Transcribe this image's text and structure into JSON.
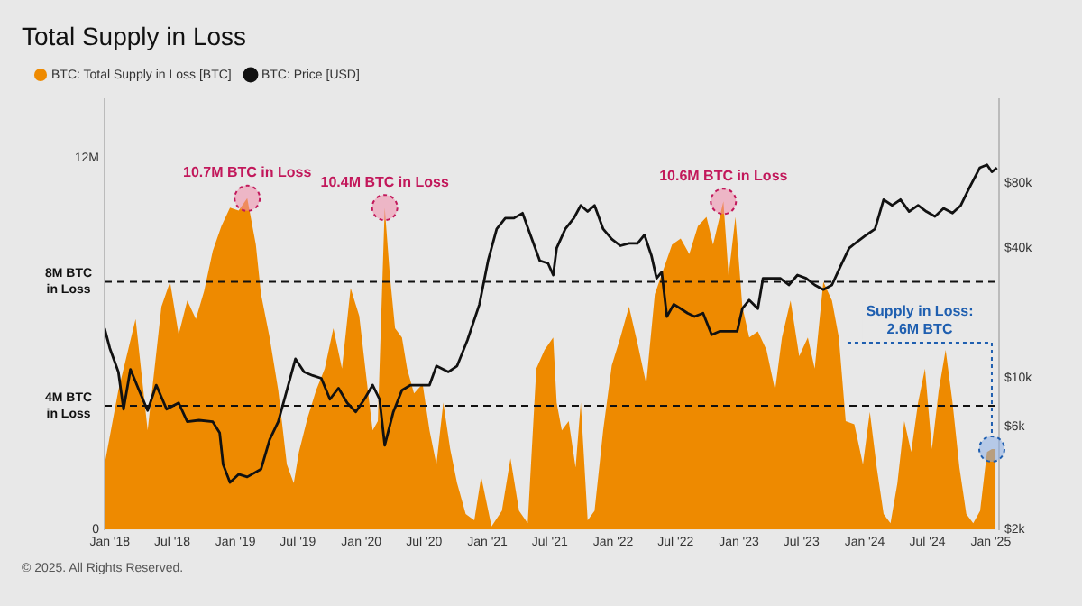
{
  "chart_data": {
    "type": "area",
    "title": "Total Supply in Loss",
    "x": [
      "2017-12-17",
      "2018-01-26",
      "2018-03-17",
      "2018-04-21",
      "2018-05-31",
      "2018-06-25",
      "2018-07-20",
      "2018-08-14",
      "2018-09-08",
      "2018-10-02",
      "2018-10-27",
      "2018-11-21",
      "2018-12-16",
      "2019-01-10",
      "2019-02-04",
      "2019-03-01",
      "2019-03-16",
      "2019-04-10",
      "2019-05-05",
      "2019-05-30",
      "2019-06-19",
      "2019-07-04",
      "2019-07-29",
      "2019-08-23",
      "2019-09-17",
      "2019-10-12",
      "2019-11-06",
      "2019-12-01",
      "2019-12-26",
      "2020-01-20",
      "2020-02-03",
      "2020-02-18",
      "2020-03-09",
      "2020-03-24",
      "2020-04-08",
      "2020-04-28",
      "2020-05-13",
      "2020-06-02",
      "2020-06-27",
      "2020-07-17",
      "2020-08-06",
      "2020-08-26",
      "2020-09-15",
      "2020-10-05",
      "2020-10-30",
      "2020-11-24",
      "2020-12-14",
      "2021-01-13",
      "2021-02-12",
      "2021-03-09",
      "2021-04-03",
      "2021-04-28",
      "2021-05-23",
      "2021-06-16",
      "2021-07-11",
      "2021-07-21",
      "2021-08-05",
      "2021-08-25",
      "2021-09-14",
      "2021-09-29",
      "2021-10-19",
      "2021-11-08",
      "2021-12-03",
      "2021-12-28",
      "2022-01-22",
      "2022-02-16",
      "2022-03-13",
      "2022-04-07",
      "2022-05-02",
      "2022-05-27",
      "2022-06-21",
      "2022-07-16",
      "2022-08-10",
      "2022-09-04",
      "2022-09-29",
      "2022-10-18",
      "2022-11-17",
      "2022-12-02",
      "2022-12-22",
      "2023-01-11",
      "2023-01-31",
      "2023-02-25",
      "2023-03-22",
      "2023-04-16",
      "2023-05-06",
      "2023-05-31",
      "2023-06-25",
      "2023-07-20",
      "2023-08-09",
      "2023-09-03",
      "2023-09-28",
      "2023-10-18",
      "2023-11-07",
      "2023-12-02",
      "2023-12-27",
      "2024-01-16",
      "2024-02-05",
      "2024-02-25",
      "2024-03-16",
      "2024-04-05",
      "2024-04-25",
      "2024-05-15",
      "2024-06-04",
      "2024-06-24",
      "2024-07-14",
      "2024-08-03",
      "2024-08-23",
      "2024-09-12",
      "2024-10-02",
      "2024-10-22",
      "2024-11-11",
      "2024-12-01",
      "2024-12-21",
      "2025-01-04",
      "2025-01-15"
    ],
    "series": [
      {
        "name": "BTC: Total Supply in Loss [BTC]",
        "type": "area",
        "color": "#ee8a00",
        "values": [
          2100000,
          4500000,
          6800000,
          3200000,
          7200000,
          8000000,
          6300000,
          7400000,
          6800000,
          7700000,
          9000000,
          9800000,
          10400000,
          10300000,
          10700000,
          9200000,
          7600000,
          6200000,
          4500000,
          2100000,
          1500000,
          2500000,
          3600000,
          4500000,
          5200000,
          6500000,
          5200000,
          7800000,
          6900000,
          4500000,
          3200000,
          3500000,
          10400000,
          8200000,
          6500000,
          6200000,
          5200000,
          4400000,
          4700000,
          3200000,
          2100000,
          4100000,
          2600000,
          1500000,
          500000,
          300000,
          1700000,
          100000,
          600000,
          2300000,
          600000,
          200000,
          5200000,
          5800000,
          6200000,
          4100000,
          3200000,
          3500000,
          2000000,
          4100000,
          300000,
          600000,
          3200000,
          5300000,
          6200000,
          7200000,
          6000000,
          4700000,
          7600000,
          8400000,
          9200000,
          9400000,
          8900000,
          9800000,
          10100000,
          9200000,
          10600000,
          8200000,
          10100000,
          7200000,
          6200000,
          6400000,
          5800000,
          4500000,
          6200000,
          7400000,
          5600000,
          6200000,
          5200000,
          8000000,
          7400000,
          6200000,
          3500000,
          3400000,
          2100000,
          3800000,
          2000000,
          500000,
          200000,
          1500000,
          3500000,
          2500000,
          4100000,
          5200000,
          2600000,
          4500000,
          5800000,
          4100000,
          2000000,
          500000,
          200000,
          600000,
          2500000,
          2600000,
          2600000
        ]
      },
      {
        "name": "BTC: Price [USD]",
        "type": "line",
        "axis": "y2",
        "color": "#111111",
        "x": [
          "2017-12-17",
          "2018-01-01",
          "2018-01-26",
          "2018-02-10",
          "2018-03-02",
          "2018-03-27",
          "2018-04-21",
          "2018-05-16",
          "2018-06-15",
          "2018-07-20",
          "2018-08-14",
          "2018-09-17",
          "2018-10-27",
          "2018-11-16",
          "2018-11-26",
          "2018-12-16",
          "2019-01-10",
          "2019-02-04",
          "2019-03-16",
          "2019-04-10",
          "2019-05-05",
          "2019-05-30",
          "2019-06-24",
          "2019-07-19",
          "2019-08-13",
          "2019-09-07",
          "2019-10-02",
          "2019-10-27",
          "2019-11-21",
          "2019-12-16",
          "2020-01-10",
          "2020-02-03",
          "2020-02-23",
          "2020-03-09",
          "2020-04-03",
          "2020-04-28",
          "2020-05-23",
          "2020-06-17",
          "2020-07-17",
          "2020-08-06",
          "2020-09-10",
          "2020-10-05",
          "2020-11-04",
          "2020-12-09",
          "2021-01-03",
          "2021-01-28",
          "2021-02-22",
          "2021-03-19",
          "2021-04-13",
          "2021-05-08",
          "2021-06-02",
          "2021-06-26",
          "2021-07-11",
          "2021-07-21",
          "2021-08-15",
          "2021-09-09",
          "2021-09-29",
          "2021-10-19",
          "2021-11-08",
          "2021-12-03",
          "2021-12-28",
          "2022-01-22",
          "2022-02-16",
          "2022-03-13",
          "2022-04-02",
          "2022-04-22",
          "2022-05-07",
          "2022-05-22",
          "2022-06-06",
          "2022-06-26",
          "2022-07-16",
          "2022-08-05",
          "2022-08-25",
          "2022-09-19",
          "2022-10-14",
          "2022-11-07",
          "2022-12-02",
          "2022-12-27",
          "2023-01-11",
          "2023-01-31",
          "2023-02-25",
          "2023-03-12",
          "2023-04-06",
          "2023-05-01",
          "2023-05-26",
          "2023-06-20",
          "2023-07-15",
          "2023-08-09",
          "2023-09-03",
          "2023-09-28",
          "2023-10-23",
          "2023-11-17",
          "2023-12-12",
          "2024-01-06",
          "2024-01-31",
          "2024-02-25",
          "2024-03-21",
          "2024-04-14",
          "2024-05-09",
          "2024-06-04",
          "2024-06-28",
          "2024-07-23",
          "2024-08-17",
          "2024-09-12",
          "2024-10-06",
          "2024-10-31",
          "2024-11-30",
          "2024-12-21",
          "2025-01-04",
          "2025-01-19"
        ],
        "values": [
          17000,
          13800,
          10700,
          7200,
          11000,
          8800,
          7100,
          9300,
          7200,
          7700,
          6300,
          6400,
          6300,
          5600,
          4000,
          3300,
          3600,
          3500,
          3800,
          5200,
          6300,
          8800,
          12300,
          10700,
          10300,
          10000,
          8000,
          9000,
          7700,
          7000,
          8000,
          9300,
          8000,
          4900,
          7000,
          8800,
          9300,
          9300,
          9300,
          11400,
          10700,
          11400,
          15000,
          22000,
          35000,
          49000,
          55000,
          55000,
          58000,
          45000,
          35000,
          34000,
          30000,
          40000,
          49000,
          55000,
          63000,
          59000,
          63000,
          49000,
          44000,
          41000,
          42000,
          42000,
          46000,
          37000,
          29000,
          31000,
          19300,
          22000,
          21000,
          20000,
          19300,
          20000,
          15900,
          16500,
          16500,
          16500,
          21000,
          23000,
          21000,
          29000,
          29000,
          29000,
          27000,
          30000,
          29000,
          27000,
          25700,
          27000,
          33000,
          40000,
          43000,
          46000,
          49000,
          67000,
          63000,
          67000,
          59000,
          63000,
          59000,
          56000,
          61000,
          58000,
          63000,
          76000,
          94000,
          97000,
          90000,
          94000
        ]
      }
    ],
    "xlim": [
      "2017-12-17",
      "2025-01-25"
    ],
    "xticks": [
      {
        "value": "2018-01-01",
        "label": "Jan '18"
      },
      {
        "value": "2018-07-01",
        "label": "Jul '18"
      },
      {
        "value": "2019-01-01",
        "label": "Jan '19"
      },
      {
        "value": "2019-07-01",
        "label": "Jul '19"
      },
      {
        "value": "2020-01-01",
        "label": "Jan '20"
      },
      {
        "value": "2020-07-01",
        "label": "Jul '20"
      },
      {
        "value": "2021-01-01",
        "label": "Jan '21"
      },
      {
        "value": "2021-07-01",
        "label": "Jul '21"
      },
      {
        "value": "2022-01-01",
        "label": "Jan '22"
      },
      {
        "value": "2022-07-01",
        "label": "Jul '22"
      },
      {
        "value": "2023-01-01",
        "label": "Jan '23"
      },
      {
        "value": "2023-07-01",
        "label": "Jul '23"
      },
      {
        "value": "2024-01-01",
        "label": "Jan '24"
      },
      {
        "value": "2024-07-01",
        "label": "Jul '24"
      },
      {
        "value": "2025-01-01",
        "label": "Jan '25"
      }
    ],
    "ylim": [
      0,
      13900000
    ],
    "yticks": [
      0,
      {
        "value": 12000000,
        "label": "12M"
      }
    ],
    "y2lim": [
      2000,
      195000
    ],
    "y2ticks": [
      {
        "value": 2000,
        "label": "$2k"
      },
      {
        "value": 6000,
        "label": "$6k"
      },
      {
        "value": 10000,
        "label": "$10k"
      },
      {
        "value": 40000,
        "label": "$40k"
      },
      {
        "value": 80000,
        "label": "$80k"
      }
    ],
    "log": "y2",
    "marker": "none",
    "legend": "top left",
    "ref_lines": [
      {
        "axis": "y",
        "value": 8000000,
        "label": "8M BTC in Loss",
        "color": "#111111",
        "line_style": "dashed"
      },
      {
        "axis": "y",
        "value": 4000000,
        "label": "4M BTC in Loss",
        "color": "#111111",
        "line_style": "dashed"
      }
    ],
    "annotations": [
      {
        "text": "10.7M BTC in Loss",
        "x": "2019-02-04",
        "y": 10700000
      },
      {
        "text": "10.4M BTC in Loss",
        "x": "2020-03-09",
        "y": 10400000
      },
      {
        "text": "10.6M BTC in Loss",
        "x": "2022-11-17",
        "y": 10600000
      },
      {
        "text": "Supply in Loss: 2.6M BTC",
        "x": "2025-01-04",
        "y": 2600000
      },
      "© 2025. All Rights Reserved."
    ]
  }
}
